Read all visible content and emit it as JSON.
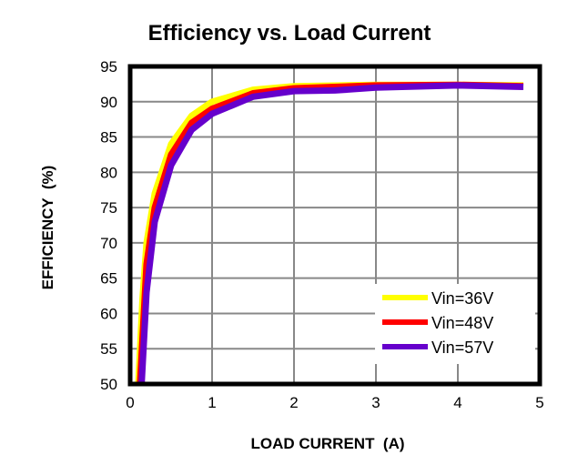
{
  "chart_data": {
    "type": "line",
    "title": "Efficiency vs. Load Current",
    "xlabel": "LOAD CURRENT  (A)",
    "ylabel": "EFFICIENCY  (%)",
    "xlim": [
      0,
      5
    ],
    "ylim": [
      50,
      95
    ],
    "xticks": [
      0,
      1,
      2,
      3,
      4,
      5
    ],
    "yticks": [
      50,
      55,
      60,
      65,
      70,
      75,
      80,
      85,
      90,
      95
    ],
    "grid": true,
    "legend_position": "bottom-right",
    "series": [
      {
        "name": "Vin=36V",
        "color": "#ffff00",
        "points": [
          [
            0.1,
            50
          ],
          [
            0.15,
            62
          ],
          [
            0.2,
            70
          ],
          [
            0.3,
            77
          ],
          [
            0.5,
            84
          ],
          [
            0.75,
            88
          ],
          [
            1,
            90
          ],
          [
            1.5,
            91.7
          ],
          [
            2,
            92.2
          ],
          [
            3,
            92.4
          ],
          [
            4,
            92.4
          ],
          [
            4.8,
            92.3
          ]
        ]
      },
      {
        "name": "Vin=48V",
        "color": "#ff0000",
        "points": [
          [
            0.12,
            50
          ],
          [
            0.2,
            67
          ],
          [
            0.3,
            75
          ],
          [
            0.5,
            82.5
          ],
          [
            0.75,
            87
          ],
          [
            1,
            89
          ],
          [
            1.5,
            91.2
          ],
          [
            2,
            91.9
          ],
          [
            3,
            92.3
          ],
          [
            4,
            92.4
          ],
          [
            4.8,
            92.2
          ]
        ]
      },
      {
        "name": "Vin=57V",
        "color": "#6600cc",
        "points": [
          [
            0.14,
            50
          ],
          [
            0.2,
            63
          ],
          [
            0.3,
            73
          ],
          [
            0.5,
            81
          ],
          [
            0.75,
            86
          ],
          [
            1,
            88.3
          ],
          [
            1.5,
            90.7
          ],
          [
            2,
            91.5
          ],
          [
            2.5,
            91.6
          ],
          [
            3,
            92
          ],
          [
            4,
            92.3
          ],
          [
            4.8,
            92.1
          ]
        ]
      }
    ]
  }
}
